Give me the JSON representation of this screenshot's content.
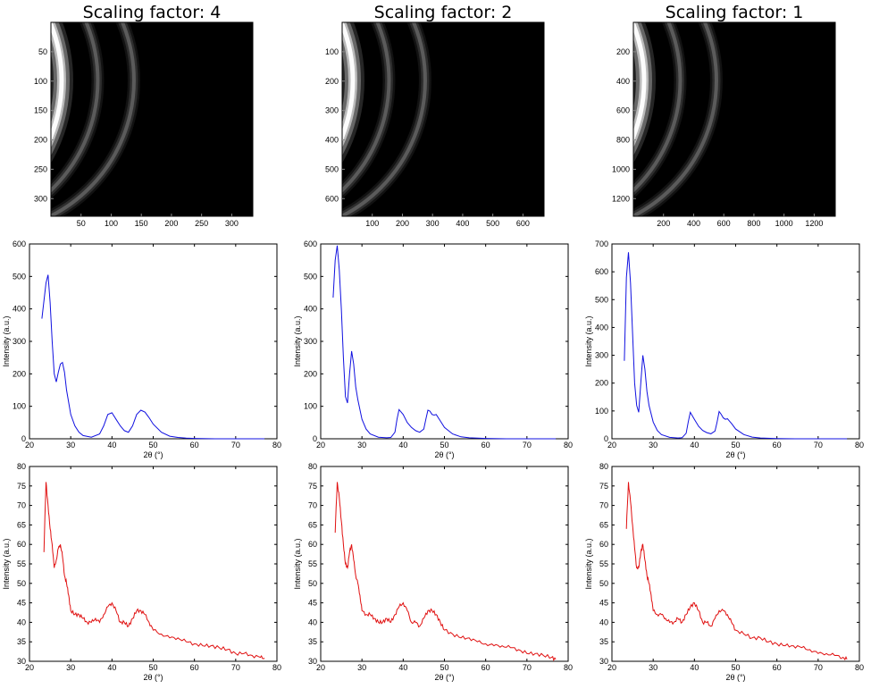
{
  "column_titles": [
    "Scaling factor: 4",
    "Scaling factor: 2",
    "Scaling factor: 1"
  ],
  "colors": {
    "blue_series": "#1010e0",
    "red_series": "#e01010",
    "image_bg": "#000000"
  },
  "chart_data": [
    {
      "type": "heatmap",
      "title": "Scaling factor: 4",
      "description_axes": {
        "xlim": [
          0,
          335
        ],
        "ylim": [
          0,
          330
        ]
      },
      "xticks": [
        50,
        100,
        150,
        200,
        250,
        300
      ],
      "yticks": [
        50,
        100,
        150,
        200,
        250,
        300
      ],
      "rings_x": [
        0,
        60,
        120
      ]
    },
    {
      "type": "heatmap",
      "title": "Scaling factor: 2",
      "description_axes": {
        "xlim": [
          0,
          670
        ],
        "ylim": [
          0,
          660
        ]
      },
      "xticks": [
        100,
        200,
        300,
        400,
        500,
        600
      ],
      "yticks": [
        100,
        200,
        300,
        400,
        500,
        600
      ],
      "rings_x": [
        0,
        120,
        240
      ]
    },
    {
      "type": "heatmap",
      "title": "Scaling factor: 1",
      "description_axes": {
        "xlim": [
          0,
          1340
        ],
        "ylim": [
          0,
          1320
        ]
      },
      "xticks": [
        200,
        400,
        600,
        800,
        1000,
        1200
      ],
      "yticks": [
        200,
        400,
        600,
        800,
        1000,
        1200
      ],
      "rings_x": [
        0,
        240,
        480
      ]
    },
    {
      "type": "line",
      "xlabel": "2θ (°)",
      "ylabel": "Intensity (a.u.)",
      "xlim": [
        20,
        80
      ],
      "ylim": [
        0,
        600
      ],
      "xticks": [
        20,
        30,
        40,
        50,
        60,
        70,
        80
      ],
      "yticks": [
        0,
        100,
        200,
        300,
        400,
        500,
        600
      ],
      "series": [
        {
          "color": "#1010e0",
          "x": [
            23,
            24,
            24.5,
            25,
            25.5,
            26,
            26.5,
            27,
            27.5,
            28,
            28.5,
            29,
            30,
            31,
            32,
            33,
            35,
            37,
            38,
            39,
            40,
            41,
            42,
            43,
            44,
            45,
            46,
            47,
            48,
            49,
            50,
            52,
            54,
            56,
            58,
            60,
            65,
            70,
            77
          ],
          "y": [
            370,
            480,
            505,
            420,
            300,
            200,
            175,
            205,
            230,
            235,
            205,
            150,
            75,
            40,
            20,
            10,
            5,
            15,
            40,
            75,
            80,
            60,
            40,
            25,
            20,
            40,
            75,
            88,
            82,
            65,
            45,
            20,
            8,
            4,
            2,
            1,
            0,
            0,
            0
          ]
        }
      ]
    },
    {
      "type": "line",
      "xlabel": "2θ (°)",
      "ylabel": "Intensity (a.u.)",
      "xlim": [
        20,
        80
      ],
      "ylim": [
        0,
        600
      ],
      "xticks": [
        20,
        30,
        40,
        50,
        60,
        70,
        80
      ],
      "yticks": [
        0,
        100,
        200,
        300,
        400,
        500,
        600
      ],
      "series": [
        {
          "color": "#1010e0",
          "x": [
            23,
            23.5,
            24,
            24.5,
            25,
            25.5,
            26,
            26.5,
            27,
            27.5,
            28,
            28.5,
            29,
            30,
            31,
            32,
            34,
            36,
            37,
            38,
            38.5,
            39,
            40,
            41,
            42,
            43,
            44,
            45,
            45.5,
            46,
            46.5,
            47,
            47.5,
            48,
            49,
            50,
            52,
            54,
            56,
            60,
            65,
            70,
            77
          ],
          "y": [
            435,
            550,
            595,
            520,
            400,
            250,
            130,
            110,
            200,
            270,
            230,
            160,
            120,
            60,
            30,
            15,
            5,
            3,
            4,
            20,
            60,
            90,
            75,
            50,
            35,
            25,
            20,
            30,
            60,
            88,
            85,
            75,
            73,
            75,
            55,
            35,
            15,
            6,
            3,
            1,
            0,
            0,
            0
          ]
        }
      ]
    },
    {
      "type": "line",
      "xlabel": "2θ (°)",
      "ylabel": "Intensity (a.u.)",
      "xlim": [
        20,
        80
      ],
      "ylim": [
        0,
        700
      ],
      "xticks": [
        20,
        30,
        40,
        50,
        60,
        70,
        80
      ],
      "yticks": [
        0,
        100,
        200,
        300,
        400,
        500,
        600,
        700
      ],
      "series": [
        {
          "color": "#1010e0",
          "x": [
            23,
            23.5,
            24,
            24.5,
            25,
            25.5,
            26,
            26.5,
            27,
            27.5,
            28,
            28.5,
            29,
            30,
            31,
            32,
            34,
            36,
            37,
            38,
            38.5,
            39,
            40,
            41,
            42,
            43,
            44,
            45,
            45.5,
            46,
            46.5,
            47,
            47.5,
            48,
            49,
            50,
            52,
            54,
            56,
            60,
            65,
            70,
            77
          ],
          "y": [
            280,
            580,
            670,
            560,
            380,
            200,
            120,
            95,
            200,
            300,
            250,
            170,
            120,
            60,
            30,
            15,
            5,
            3,
            4,
            20,
            60,
            95,
            70,
            45,
            30,
            22,
            18,
            28,
            60,
            98,
            88,
            75,
            70,
            72,
            55,
            35,
            15,
            6,
            3,
            1,
            0,
            0,
            0
          ]
        }
      ]
    },
    {
      "type": "line",
      "xlabel": "2θ (°)",
      "ylabel": "Intensity (a.u.)",
      "xlim": [
        20,
        80
      ],
      "ylim": [
        30,
        80
      ],
      "xticks": [
        20,
        30,
        40,
        50,
        60,
        70,
        80
      ],
      "yticks": [
        30,
        35,
        40,
        45,
        50,
        55,
        60,
        65,
        70,
        75,
        80
      ],
      "series": [
        {
          "color": "#e01010",
          "x": [
            23.5,
            24,
            24.5,
            25,
            25.5,
            26,
            26.5,
            27,
            27.5,
            28,
            28.5,
            29,
            29.5,
            30,
            31,
            32,
            33,
            34,
            35,
            36,
            37,
            38,
            39,
            40,
            41,
            42,
            43,
            44,
            45,
            46,
            47,
            48,
            49,
            50,
            52,
            54,
            56,
            58,
            60,
            62,
            64,
            66,
            68,
            70,
            72,
            74,
            76,
            77
          ],
          "y": [
            58,
            76,
            70,
            64,
            60,
            54,
            56,
            59,
            60,
            57,
            52,
            50,
            47,
            43,
            42,
            42,
            41,
            40,
            40,
            41,
            40,
            42,
            44,
            45,
            43,
            40,
            40,
            39,
            41,
            43,
            43,
            42,
            40,
            38,
            37,
            36,
            36,
            35,
            34.5,
            34,
            34,
            33.5,
            33,
            32,
            32,
            31.5,
            31,
            30.8
          ]
        }
      ]
    },
    {
      "type": "line",
      "xlabel": "2θ (°)",
      "ylabel": "Intensity (a.u.)",
      "xlim": [
        20,
        80
      ],
      "ylim": [
        30,
        80
      ],
      "xticks": [
        20,
        30,
        40,
        50,
        60,
        70,
        80
      ],
      "yticks": [
        30,
        35,
        40,
        45,
        50,
        55,
        60,
        65,
        70,
        75,
        80
      ],
      "series": [
        {
          "color": "#e01010",
          "x": [
            23.5,
            24,
            24.5,
            25,
            25.5,
            26,
            26.5,
            27,
            27.5,
            28,
            28.5,
            29,
            29.5,
            30,
            31,
            32,
            33,
            34,
            35,
            36,
            37,
            38,
            39,
            40,
            41,
            42,
            43,
            44,
            45,
            46,
            47,
            48,
            49,
            50,
            52,
            54,
            56,
            58,
            60,
            62,
            64,
            66,
            68,
            70,
            72,
            74,
            76,
            77
          ],
          "y": [
            63,
            76,
            72,
            66,
            60,
            55,
            54,
            58,
            60,
            56,
            52,
            50,
            47,
            43,
            42,
            42,
            41,
            40,
            40,
            41,
            40,
            42,
            44,
            45,
            43,
            40,
            40,
            39,
            41,
            43,
            43,
            42,
            40,
            38,
            37,
            36,
            36,
            35,
            34.5,
            34,
            34,
            33.5,
            33,
            32,
            32,
            31.5,
            31,
            30.5
          ]
        }
      ]
    },
    {
      "type": "line",
      "xlabel": "2θ (°)",
      "ylabel": "Intensity (a.u.)",
      "xlim": [
        20,
        80
      ],
      "ylim": [
        30,
        80
      ],
      "xticks": [
        20,
        30,
        40,
        50,
        60,
        70,
        80
      ],
      "yticks": [
        30,
        35,
        40,
        45,
        50,
        55,
        60,
        65,
        70,
        75,
        80
      ],
      "series": [
        {
          "color": "#e01010",
          "x": [
            23.5,
            24,
            24.5,
            25,
            25.5,
            26,
            26.5,
            27,
            27.5,
            28,
            28.5,
            29,
            29.5,
            30,
            31,
            32,
            33,
            34,
            35,
            36,
            37,
            38,
            39,
            40,
            41,
            42,
            43,
            44,
            45,
            46,
            47,
            48,
            49,
            50,
            52,
            54,
            56,
            58,
            60,
            62,
            64,
            66,
            68,
            70,
            72,
            74,
            76,
            77
          ],
          "y": [
            64,
            76,
            71,
            65,
            59,
            54,
            54,
            58,
            60,
            56,
            52,
            50,
            47,
            43,
            42,
            42,
            41,
            40,
            40,
            41,
            40,
            42,
            44,
            45,
            43,
            40,
            40,
            39,
            41,
            43,
            43,
            42,
            40,
            38,
            37,
            36,
            36,
            35,
            34.5,
            34,
            34,
            33.5,
            33,
            32,
            32,
            31.5,
            31,
            30.5
          ]
        }
      ]
    }
  ]
}
